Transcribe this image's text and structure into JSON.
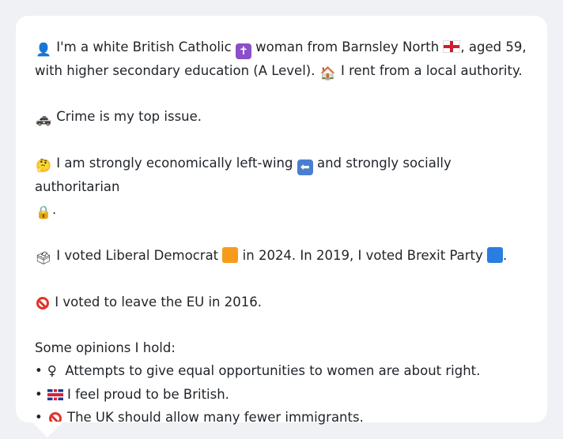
{
  "profile": {
    "intro_part1": "I'm a white British Catholic",
    "intro_part2": "woman from Barnsley North",
    "intro_part3": ", aged 59,",
    "intro_line2a": "with higher secondary education (A Level).",
    "intro_line2b": "I rent from a local authority.",
    "top_issue": "Crime is my top issue.",
    "economic_part1": "I am strongly economically left-wing",
    "economic_part2": "and strongly socially authoritarian",
    "economic_end": ".",
    "vote_part1": "I voted Liberal Democrat",
    "vote_part2": "in 2024. In 2019, I voted Brexit Party",
    "vote_end": ".",
    "eu_vote": "I voted to leave the EU in 2016.",
    "opinions_heading": "Some opinions I hold:",
    "opinions": [
      "Attempts to give equal opportunities to women are about right.",
      "I feel proud to be British.",
      "The UK should allow many fewer immigrants."
    ]
  },
  "icons": {
    "person": "👤",
    "cross": "✝",
    "house": "🏠",
    "police_car": "🚓",
    "thinking": "🤔",
    "left_arrow": "⬅",
    "lock": "🔒",
    "ballot_box": "🗳",
    "female_sign": "♀",
    "bullet": "•"
  },
  "colors": {
    "lib_dem": "#f89b1c",
    "brexit": "#2a7de1",
    "card_background": "#ffffff",
    "page_background": "#f0f1f5"
  }
}
